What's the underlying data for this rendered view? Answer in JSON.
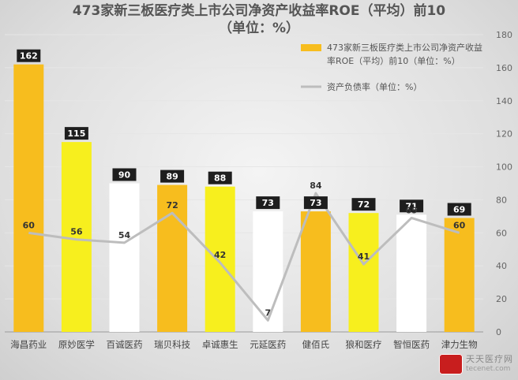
{
  "title": {
    "line1": "473家新三板医疗类上市公司净资产收益率ROE（平均）前10",
    "line2": "（单位：%）"
  },
  "legend": {
    "bar_label_line1": "473家新三板医疗类上市公司净资产收益",
    "bar_label_line2": "率ROE（平均）前10（单位：%）",
    "line_label": "资产负债率（单位：%）"
  },
  "watermark": {
    "main": "天天医疗网",
    "sub": "tecenet.com"
  },
  "colors": {
    "orange": "#f7bd1e",
    "yellow": "#f7ef1e",
    "white": "#ffffff",
    "line": "#bdbdbd",
    "label_bg": "#1e1e1e"
  },
  "chart_data": {
    "type": "bar",
    "categories": [
      "海昌药业",
      "原妙医学",
      "百诚医药",
      "瑞贝科技",
      "卓诚惠生",
      "元延医药",
      "健佰氏",
      "狼和医疗",
      "智恒医药",
      "津力生物"
    ],
    "series": [
      {
        "name": "473家新三板医疗类上市公司净资产收益率ROE（平均）前10（单位：%）",
        "type": "bar",
        "values": [
          162,
          115,
          90,
          89,
          88,
          73,
          73,
          72,
          71,
          69
        ],
        "bar_colors": [
          "orange",
          "yellow",
          "white",
          "orange",
          "yellow",
          "white",
          "orange",
          "yellow",
          "white",
          "orange"
        ]
      },
      {
        "name": "资产负债率（单位：%）",
        "type": "line",
        "values": [
          60,
          56,
          54,
          72,
          42,
          7,
          84,
          41,
          69,
          60
        ]
      }
    ],
    "y_axis": {
      "side": "right",
      "range": [
        0,
        180
      ],
      "ticks": [
        "0",
        "20",
        "40",
        "60",
        "80",
        "100",
        "120",
        "140",
        "160",
        "180"
      ]
    },
    "grid": true,
    "legend_position": "top-right"
  }
}
